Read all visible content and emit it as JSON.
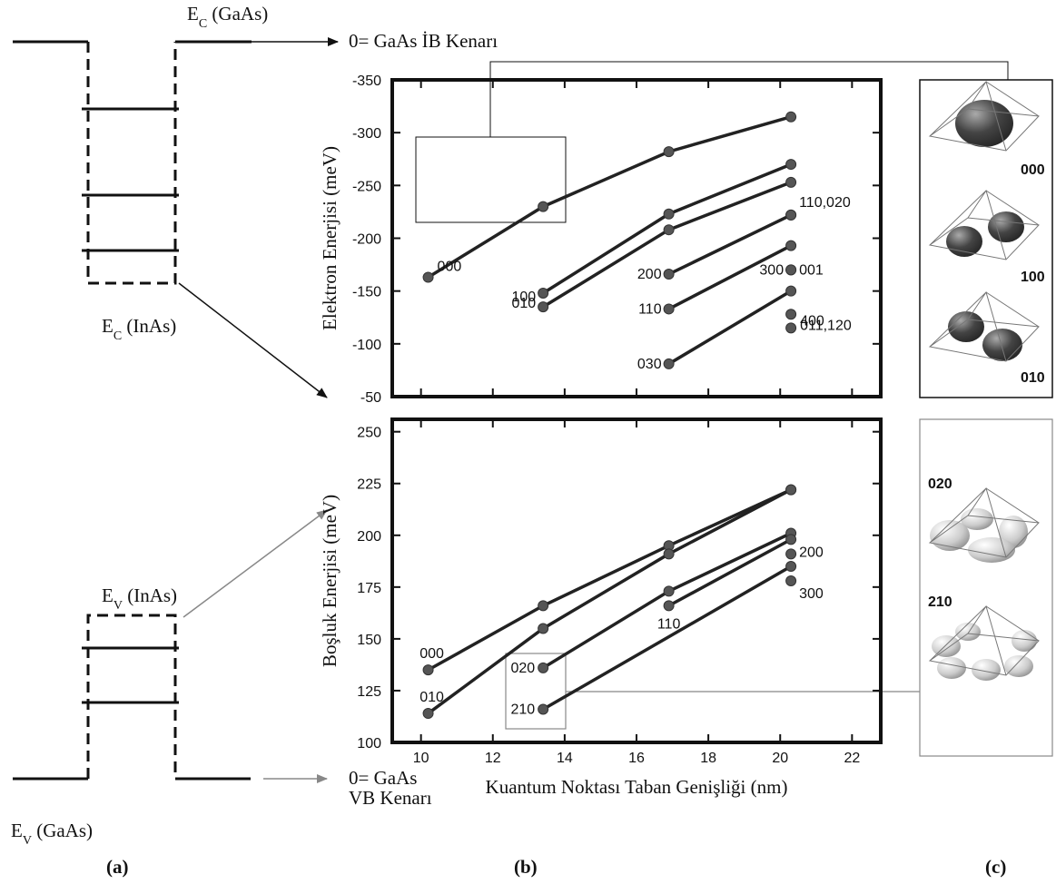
{
  "band_diagram": {
    "ec_gaas": {
      "symbol": "E",
      "sub": "C",
      "rest": " (GaAs)"
    },
    "ec_inas": {
      "symbol": "E",
      "sub": "C",
      "rest": " (InAs)"
    },
    "ev_inas": {
      "symbol": "E",
      "sub": "V",
      "rest": " (InAs)"
    },
    "ev_gaas": {
      "symbol": "E",
      "sub": "V",
      "rest": " (GaAs)"
    }
  },
  "reference_labels": {
    "cb_zero": "0= GaAs İB Kenarı",
    "vb_zero": "0= GaAs",
    "vb_zero_line2": "VB Kenarı"
  },
  "panel_labels": [
    "(a)",
    "(b)",
    "(c)"
  ],
  "panel_c": {
    "top": [
      "000",
      "100",
      "010"
    ],
    "bottom": [
      "020",
      "210"
    ]
  },
  "chart_data": [
    {
      "type": "line",
      "ylabel": "Elektron Enerjisi (meV)",
      "xlim": [
        9.2,
        22.8
      ],
      "xticks": [
        10,
        12,
        14,
        16,
        18,
        20,
        22
      ],
      "ylim": [
        -50,
        -350
      ],
      "yticks": [
        -50,
        -100,
        -150,
        -200,
        -250,
        -300,
        -350
      ],
      "series": [
        {
          "name": "000",
          "color": "#222222",
          "x": [
            10.2,
            13.4,
            16.9,
            20.3
          ],
          "values": [
            -163,
            -230,
            -282,
            -315
          ]
        },
        {
          "name": "010",
          "color": "#222222",
          "x": [
            13.4,
            16.9,
            20.3
          ],
          "values": [
            -135,
            -208,
            -253
          ]
        },
        {
          "name": "100",
          "color": "#222222",
          "x": [
            13.4,
            16.9,
            20.3
          ],
          "values": [
            -148,
            -223,
            -270
          ]
        },
        {
          "name": "030",
          "color": "#222222",
          "x": [
            16.9,
            20.3
          ],
          "values": [
            -81,
            -150
          ]
        },
        {
          "name": "110",
          "color": "#222222",
          "x": [
            16.9,
            20.3
          ],
          "values": [
            -133,
            -193
          ]
        },
        {
          "name": "200",
          "color": "#222222",
          "x": [
            16.9,
            20.3
          ],
          "values": [
            -166,
            -222
          ]
        },
        {
          "name": "400",
          "color": "#222222",
          "x": [
            20.3
          ],
          "values": [
            -115
          ]
        },
        {
          "name": "011,120",
          "color": "#222222",
          "x": [
            20.3
          ],
          "values": [
            -128
          ]
        },
        {
          "name": "300",
          "color": "#222222",
          "x": [
            20.3
          ],
          "values": [
            -170
          ]
        },
        {
          "name": "001",
          "color": "#222222",
          "x": [
            20.3
          ],
          "values": [
            -170
          ]
        },
        {
          "name": "110,020",
          "color": "#222222",
          "x": [
            20.3
          ],
          "values": [
            -222
          ]
        }
      ]
    },
    {
      "type": "line",
      "ylabel": "Boşluk Enerjisi (meV)",
      "xlabel": "Kuantum Noktası Taban Genişliği (nm)",
      "xlim": [
        9.2,
        22.8
      ],
      "xticks": [
        10,
        12,
        14,
        16,
        18,
        20,
        22
      ],
      "ylim": [
        100,
        256
      ],
      "yticks": [
        100,
        125,
        150,
        175,
        200,
        225,
        250
      ],
      "series": [
        {
          "name": "000",
          "color": "#222222",
          "x": [
            10.2,
            13.4,
            16.9,
            20.3
          ],
          "values": [
            135,
            166,
            195,
            222
          ]
        },
        {
          "name": "010",
          "color": "#222222",
          "x": [
            10.2,
            13.4,
            16.9,
            20.3
          ],
          "values": [
            114,
            155,
            191,
            222
          ]
        },
        {
          "name": "020",
          "color": "#222222",
          "x": [
            13.4,
            16.9,
            20.3
          ],
          "values": [
            136,
            173,
            201
          ]
        },
        {
          "name": "210",
          "color": "#222222",
          "x": [
            13.4,
            20.3
          ],
          "values": [
            116,
            185
          ]
        },
        {
          "name": "110",
          "color": "#222222",
          "x": [
            16.9,
            20.3
          ],
          "values": [
            166,
            198
          ]
        },
        {
          "name": "200",
          "color": "#222222",
          "x": [
            20.3
          ],
          "values": [
            191
          ]
        },
        {
          "name": "300",
          "color": "#222222",
          "x": [
            20.3
          ],
          "values": [
            178
          ]
        }
      ]
    }
  ]
}
